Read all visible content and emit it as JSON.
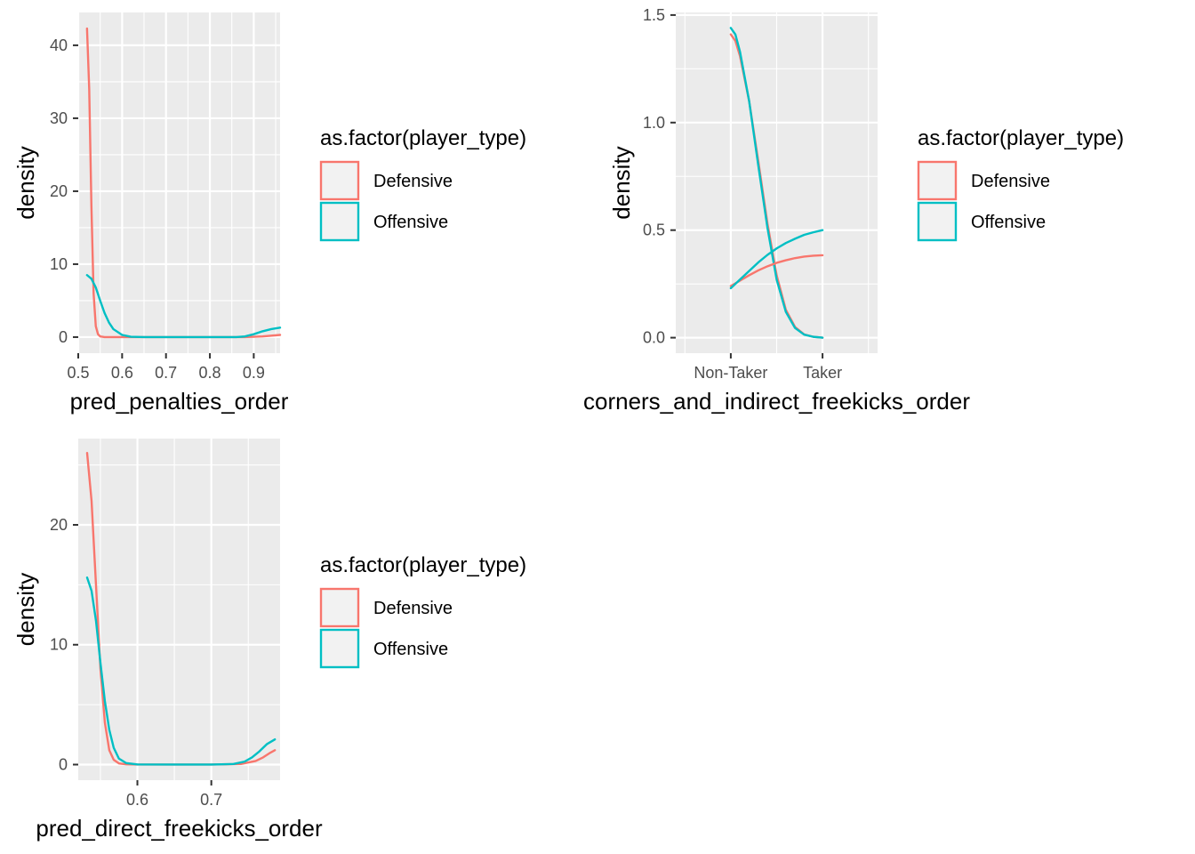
{
  "colors": {
    "panel_bg": "#EBEBEB",
    "grid": "#FFFFFF",
    "Defensive": "#F8766D",
    "Offensive": "#00BFC4",
    "legend_key_bg": "#F2F2F2"
  },
  "legend": {
    "title": "as.factor(player_type)",
    "labels": [
      "Defensive",
      "Offensive"
    ]
  },
  "chart_data": [
    {
      "type": "line",
      "xlabel": "pred_penalties_order",
      "ylabel": "density",
      "xlim": [
        0.5,
        0.96
      ],
      "ylim": [
        -2.2,
        44.5
      ],
      "x_ticks": [
        0.5,
        0.6,
        0.7,
        0.8,
        0.9
      ],
      "x_tick_labels": [
        "0.5",
        "0.6",
        "0.7",
        "0.8",
        "0.9"
      ],
      "y_ticks": [
        0,
        10,
        20,
        30,
        40
      ],
      "y_tick_labels": [
        "0",
        "10",
        "20",
        "30",
        "40"
      ],
      "series": [
        {
          "name": "Defensive",
          "x": [
            0.52,
            0.525,
            0.53,
            0.535,
            0.54,
            0.545,
            0.55,
            0.56,
            0.6,
            0.7,
            0.8,
            0.88,
            0.92,
            0.96
          ],
          "values": [
            42.3,
            34,
            18,
            6,
            1.5,
            0.4,
            0.1,
            0,
            0,
            0,
            0,
            0,
            0.1,
            0.3
          ]
        },
        {
          "name": "Offensive",
          "x": [
            0.52,
            0.53,
            0.54,
            0.55,
            0.56,
            0.57,
            0.58,
            0.6,
            0.62,
            0.65,
            0.7,
            0.8,
            0.86,
            0.88,
            0.9,
            0.92,
            0.94,
            0.96
          ],
          "values": [
            8.5,
            8.0,
            6.8,
            5.0,
            3.3,
            2.0,
            1.1,
            0.3,
            0.05,
            0,
            0,
            0,
            0,
            0.1,
            0.4,
            0.8,
            1.1,
            1.3
          ]
        }
      ]
    },
    {
      "type": "line",
      "xlabel": "corners_and_indirect_freekicks_order",
      "ylabel": "density",
      "categories": [
        "Non-Taker",
        "Taker"
      ],
      "xlim": [
        0.4,
        2.6
      ],
      "ylim": [
        -0.072,
        1.512
      ],
      "x_ticks": [
        1,
        2
      ],
      "x_tick_labels": [
        "Non-Taker",
        "Taker"
      ],
      "y_ticks": [
        0.0,
        0.5,
        1.0,
        1.5
      ],
      "y_tick_labels": [
        "0.0",
        "0.5",
        "1.0",
        "1.5"
      ],
      "series": [
        {
          "name": "Defensive",
          "x": [
            1,
            1.05,
            1.1,
            1.2,
            1.3,
            1.4,
            1.5,
            1.6,
            1.7,
            1.8,
            1.9,
            2.0
          ],
          "values": [
            1.41,
            1.38,
            1.31,
            1.1,
            0.82,
            0.53,
            0.29,
            0.13,
            0.05,
            0.015,
            0.004,
            0.0
          ]
        },
        {
          "name": "Offensive",
          "x": [
            1,
            1.05,
            1.1,
            1.2,
            1.3,
            1.4,
            1.5,
            1.6,
            1.7,
            1.8,
            1.9,
            2.0
          ],
          "values": [
            1.44,
            1.41,
            1.33,
            1.1,
            0.8,
            0.51,
            0.27,
            0.12,
            0.045,
            0.014,
            0.004,
            0.0
          ]
        },
        {
          "name": "Defensive",
          "x": [
            1,
            1.1,
            1.2,
            1.3,
            1.4,
            1.5,
            1.6,
            1.7,
            1.8,
            1.9,
            2.0
          ],
          "values": [
            0.24,
            0.265,
            0.29,
            0.313,
            0.332,
            0.348,
            0.36,
            0.37,
            0.377,
            0.381,
            0.383
          ]
        },
        {
          "name": "Offensive",
          "x": [
            1,
            1.1,
            1.2,
            1.3,
            1.4,
            1.5,
            1.6,
            1.7,
            1.8,
            1.9,
            2.0
          ],
          "values": [
            0.23,
            0.27,
            0.31,
            0.35,
            0.385,
            0.415,
            0.44,
            0.46,
            0.478,
            0.49,
            0.5
          ]
        }
      ]
    },
    {
      "type": "line",
      "xlabel": "pred_direct_freekicks_order",
      "ylabel": "density",
      "xlim": [
        0.52,
        0.793
      ],
      "ylim": [
        -1.3,
        27.2
      ],
      "x_ticks": [
        0.6,
        0.7
      ],
      "x_tick_labels": [
        "0.6",
        "0.7"
      ],
      "y_ticks": [
        0,
        10,
        20
      ],
      "y_tick_labels": [
        "0",
        "10",
        "20"
      ],
      "series": [
        {
          "name": "Defensive",
          "x": [
            0.532,
            0.538,
            0.544,
            0.55,
            0.556,
            0.562,
            0.568,
            0.575,
            0.585,
            0.6,
            0.65,
            0.7,
            0.74,
            0.76,
            0.77,
            0.78,
            0.786
          ],
          "values": [
            26,
            22,
            15,
            8,
            3.5,
            1.2,
            0.4,
            0.1,
            0.02,
            0,
            0,
            0,
            0.05,
            0.3,
            0.6,
            1.0,
            1.2
          ]
        },
        {
          "name": "Offensive",
          "x": [
            0.532,
            0.538,
            0.544,
            0.55,
            0.556,
            0.562,
            0.568,
            0.575,
            0.585,
            0.6,
            0.65,
            0.7,
            0.73,
            0.745,
            0.755,
            0.765,
            0.775,
            0.786
          ],
          "values": [
            15.6,
            14.5,
            12,
            8.5,
            5.3,
            2.9,
            1.4,
            0.5,
            0.12,
            0.01,
            0,
            0,
            0.05,
            0.25,
            0.6,
            1.1,
            1.7,
            2.1
          ]
        }
      ]
    }
  ]
}
